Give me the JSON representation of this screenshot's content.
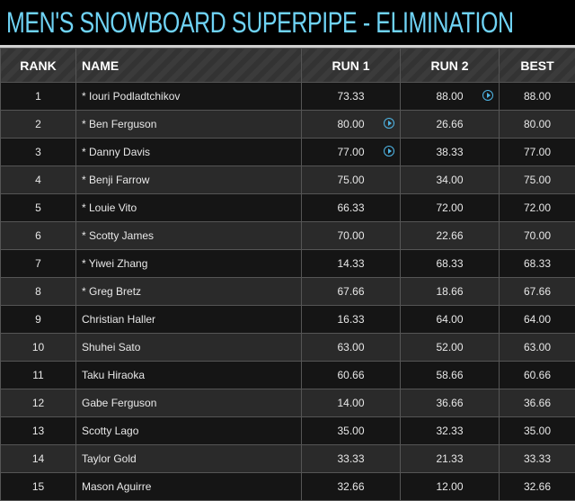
{
  "title": "MEN'S SNOWBOARD SUPERPIPE - ELIMINATION",
  "accent": "#6fd3f5",
  "columns": [
    "RANK",
    "NAME",
    "RUN 1",
    "RUN 2",
    "BEST"
  ],
  "rows": [
    {
      "rank": "1",
      "name": "* Iouri Podladtchikov",
      "run1": "73.33",
      "run2": "88.00",
      "best": "88.00",
      "video": "run2"
    },
    {
      "rank": "2",
      "name": "* Ben Ferguson",
      "run1": "80.00",
      "run2": "26.66",
      "best": "80.00",
      "video": "run1"
    },
    {
      "rank": "3",
      "name": "* Danny Davis",
      "run1": "77.00",
      "run2": "38.33",
      "best": "77.00",
      "video": "run1"
    },
    {
      "rank": "4",
      "name": "* Benji Farrow",
      "run1": "75.00",
      "run2": "34.00",
      "best": "75.00"
    },
    {
      "rank": "5",
      "name": "* Louie Vito",
      "run1": "66.33",
      "run2": "72.00",
      "best": "72.00"
    },
    {
      "rank": "6",
      "name": "* Scotty James",
      "run1": "70.00",
      "run2": "22.66",
      "best": "70.00"
    },
    {
      "rank": "7",
      "name": "* Yiwei Zhang",
      "run1": "14.33",
      "run2": "68.33",
      "best": "68.33"
    },
    {
      "rank": "8",
      "name": "* Greg Bretz",
      "run1": "67.66",
      "run2": "18.66",
      "best": "67.66"
    },
    {
      "rank": "9",
      "name": "Christian Haller",
      "run1": "16.33",
      "run2": "64.00",
      "best": "64.00"
    },
    {
      "rank": "10",
      "name": "Shuhei Sato",
      "run1": "63.00",
      "run2": "52.00",
      "best": "63.00"
    },
    {
      "rank": "11",
      "name": "Taku Hiraoka",
      "run1": "60.66",
      "run2": "58.66",
      "best": "60.66"
    },
    {
      "rank": "12",
      "name": "Gabe Ferguson",
      "run1": "14.00",
      "run2": "36.66",
      "best": "36.66"
    },
    {
      "rank": "13",
      "name": "Scotty Lago",
      "run1": "35.00",
      "run2": "32.33",
      "best": "35.00"
    },
    {
      "rank": "14",
      "name": "Taylor Gold",
      "run1": "33.33",
      "run2": "21.33",
      "best": "33.33"
    },
    {
      "rank": "15",
      "name": "Mason Aguirre",
      "run1": "32.66",
      "run2": "12.00",
      "best": "32.66"
    }
  ]
}
